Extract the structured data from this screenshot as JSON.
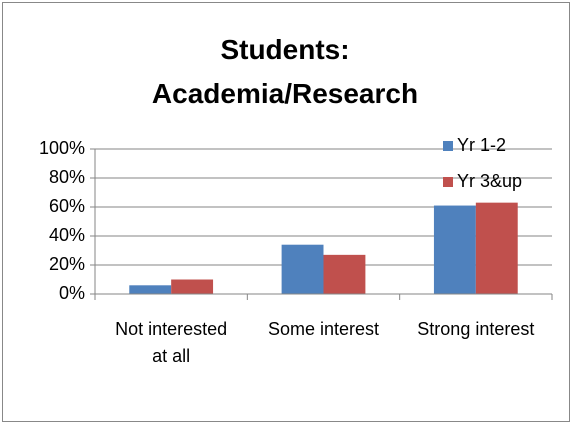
{
  "chart_data": {
    "type": "bar",
    "title": "Students: Academia/Research",
    "categories": [
      "Not interested at all",
      "Some interest",
      "Strong interest"
    ],
    "series": [
      {
        "name": "Yr 1-2",
        "color": "#4f81bd",
        "values": [
          6,
          34,
          61
        ]
      },
      {
        "name": "Yr 3&up",
        "color": "#c0504d",
        "values": [
          10,
          27,
          63
        ]
      }
    ],
    "ylim": [
      0,
      100
    ],
    "yticks": [
      {
        "value": 0,
        "label": "0%"
      },
      {
        "value": 20,
        "label": "20%"
      },
      {
        "value": 40,
        "label": "40%"
      },
      {
        "value": 60,
        "label": "60%"
      },
      {
        "value": 80,
        "label": "80%"
      },
      {
        "value": 100,
        "label": "100%"
      }
    ],
    "grid": true,
    "legend": "top-right"
  }
}
